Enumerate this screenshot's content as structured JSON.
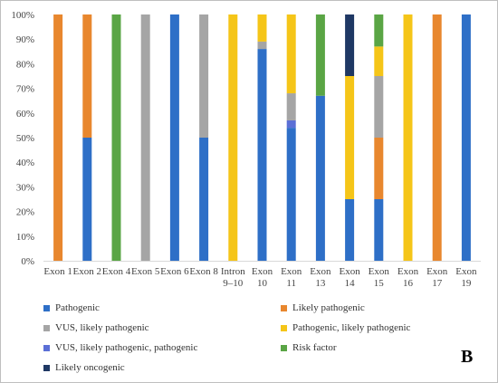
{
  "chart_data": {
    "type": "bar",
    "stacked": "percent",
    "panel_label": "B",
    "ylim": [
      0,
      100
    ],
    "y_ticks": [
      "0%",
      "10%",
      "20%",
      "30%",
      "40%",
      "50%",
      "60%",
      "70%",
      "80%",
      "90%",
      "100%"
    ],
    "categories": [
      [
        "Exon 1"
      ],
      [
        "Exon 2"
      ],
      [
        "Exon 4"
      ],
      [
        "Exon 5"
      ],
      [
        "Exon 6"
      ],
      [
        "Exon 8"
      ],
      [
        "Intron",
        "9–10"
      ],
      [
        "Exon",
        "10"
      ],
      [
        "Exon",
        "11"
      ],
      [
        "Exon",
        "13"
      ],
      [
        "Exon",
        "14"
      ],
      [
        "Exon",
        "15"
      ],
      [
        "Exon",
        "16"
      ],
      [
        "Exon",
        "17"
      ],
      [
        "Exon",
        "19"
      ]
    ],
    "series": [
      {
        "name": "Pathogenic",
        "color": "#2e6fc7",
        "values": [
          0,
          50,
          0,
          0,
          100,
          50,
          0,
          86,
          54,
          67,
          25,
          25,
          0,
          0,
          100
        ]
      },
      {
        "name": "VUS, likely pathogenic, pathogenic",
        "color": "#5b6fd6",
        "values": [
          0,
          0,
          0,
          0,
          0,
          0,
          0,
          0,
          3,
          0,
          0,
          0,
          0,
          0,
          0
        ]
      },
      {
        "name": "Likely pathogenic",
        "color": "#e8872e",
        "values": [
          100,
          50,
          0,
          0,
          0,
          0,
          0,
          0,
          0,
          0,
          0,
          25,
          0,
          100,
          0
        ]
      },
      {
        "name": "VUS, likely pathogenic",
        "color": "#a5a5a5",
        "values": [
          0,
          0,
          0,
          100,
          0,
          50,
          0,
          3,
          11,
          0,
          0,
          25,
          0,
          0,
          0
        ]
      },
      {
        "name": "Pathogenic, likely pathogenic",
        "color": "#f5c518",
        "values": [
          0,
          0,
          0,
          0,
          0,
          0,
          100,
          11,
          32,
          0,
          50,
          12,
          100,
          0,
          0
        ]
      },
      {
        "name": "Risk factor",
        "color": "#5aa545",
        "values": [
          0,
          0,
          100,
          0,
          0,
          0,
          0,
          0,
          0,
          33,
          0,
          13,
          0,
          0,
          0
        ]
      },
      {
        "name": "Likely oncogenic",
        "color": "#1f3864",
        "values": [
          0,
          0,
          0,
          0,
          0,
          0,
          0,
          0,
          0,
          0,
          25,
          0,
          0,
          0,
          0
        ]
      }
    ],
    "legend": {
      "position": "bottom",
      "items": [
        {
          "label": "Pathogenic",
          "color": "#2e6fc7"
        },
        {
          "label": "Likely pathogenic",
          "color": "#e8872e"
        },
        {
          "label": "VUS, likely pathogenic",
          "color": "#a5a5a5"
        },
        {
          "label": "Pathogenic, likely pathogenic",
          "color": "#f5c518"
        },
        {
          "label": "VUS, likely pathogenic, pathogenic",
          "color": "#5b6fd6"
        },
        {
          "label": "Risk factor",
          "color": "#5aa545"
        },
        {
          "label": "Likely oncogenic",
          "color": "#1f3864"
        }
      ]
    },
    "grid": false
  }
}
